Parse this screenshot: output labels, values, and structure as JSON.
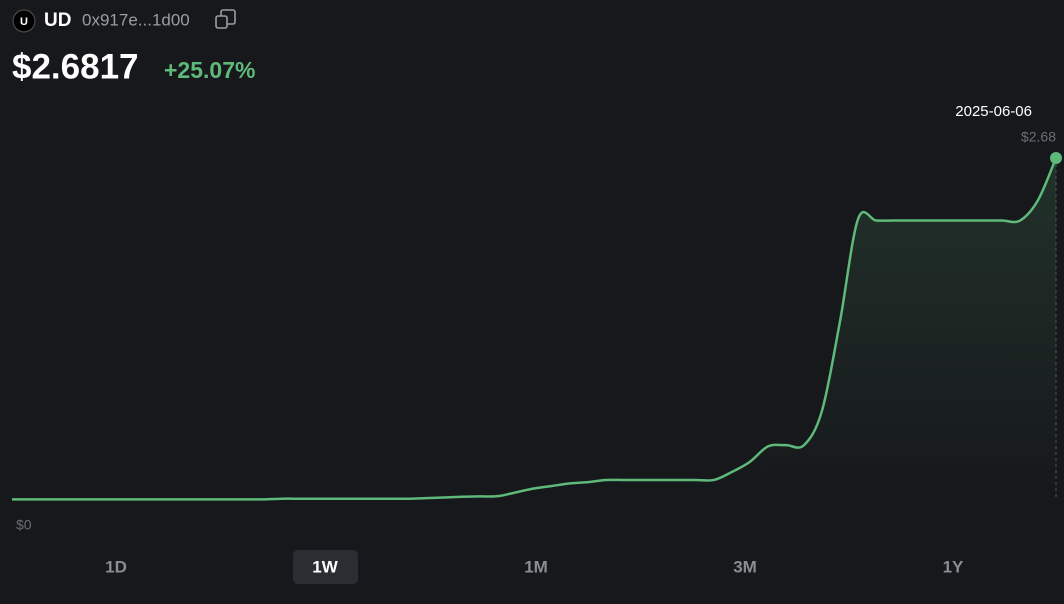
{
  "header": {
    "token_icon": "U",
    "symbol": "UD",
    "address": "0x917e...1d00",
    "price": "$2.6817",
    "change": "+25.07%"
  },
  "chart_data": {
    "type": "line",
    "color": "#5fb97a",
    "values": [
      0.005,
      0.005,
      0.005,
      0.005,
      0.005,
      0.005,
      0.005,
      0.005,
      0.005,
      0.005,
      0.005,
      0.005,
      0.005,
      0.005,
      0.005,
      0.01,
      0.01,
      0.01,
      0.01,
      0.01,
      0.01,
      0.01,
      0.01,
      0.015,
      0.02,
      0.025,
      0.028,
      0.03,
      0.06,
      0.09,
      0.11,
      0.13,
      0.14,
      0.157,
      0.157,
      0.157,
      0.157,
      0.157,
      0.157,
      0.157,
      0.22,
      0.3,
      0.42,
      0.43,
      0.43,
      0.7,
      1.4,
      2.2,
      2.19,
      2.19,
      2.19,
      2.19,
      2.19,
      2.19,
      2.19,
      2.19,
      2.19,
      2.35,
      2.68
    ],
    "ylim": [
      0,
      2.68
    ],
    "yticks": [
      {
        "value": 0,
        "label": "$0"
      },
      {
        "value": 2.68,
        "label": "$2.68"
      }
    ],
    "last_date": "2025-06-06",
    "ranges": [
      "1D",
      "1W",
      "1M",
      "3M",
      "1Y"
    ],
    "selected_range": 1
  }
}
